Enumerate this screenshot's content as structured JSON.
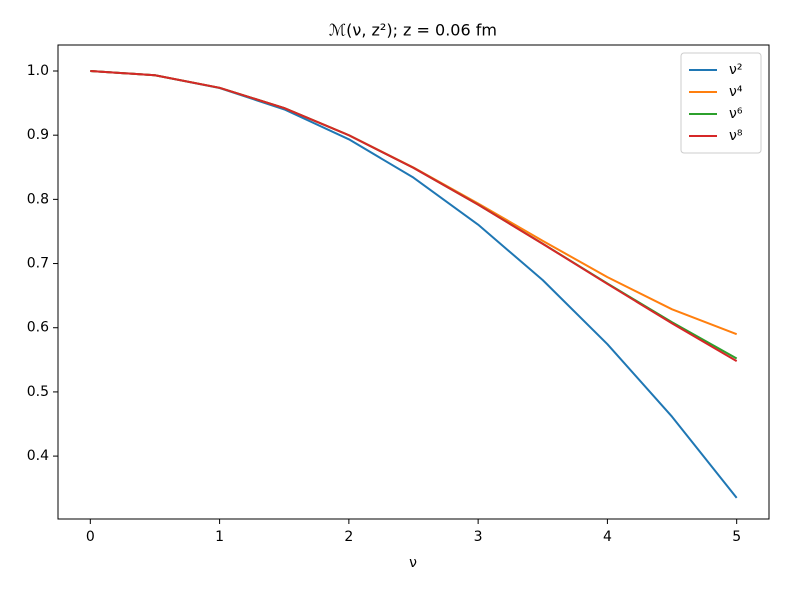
{
  "chart_data": {
    "type": "line",
    "title": "ℳ(ν, z²); z = 0.06 fm",
    "x_label": "ν",
    "x": [
      0,
      0.5,
      1,
      1.5,
      2,
      2.5,
      3,
      3.5,
      4,
      4.5,
      5
    ],
    "series": [
      {
        "name": "ν²",
        "color": "#1f77b4",
        "values": [
          1,
          0.9934,
          0.9734,
          0.9402,
          0.8936,
          0.8338,
          0.7606,
          0.6742,
          0.5744,
          0.4614,
          0.335
        ]
      },
      {
        "name": "ν⁴",
        "color": "#ff7f0e",
        "values": [
          1,
          0.9934,
          0.9738,
          0.9423,
          0.9001,
          0.8497,
          0.7936,
          0.7354,
          0.6788,
          0.6287,
          0.59
        ]
      },
      {
        "name": "ν⁶",
        "color": "#2ca02c",
        "values": [
          1,
          0.9934,
          0.9738,
          0.9423,
          0.8999,
          0.8491,
          0.7918,
          0.7309,
          0.6689,
          0.6085,
          0.552
        ]
      },
      {
        "name": "ν⁸",
        "color": "#d62728",
        "values": [
          1,
          0.9934,
          0.9738,
          0.9423,
          0.8999,
          0.8491,
          0.7917,
          0.7307,
          0.6682,
          0.6068,
          0.548
        ]
      }
    ],
    "xlim": [
      -0.25,
      5.25
    ],
    "xticks": [
      0,
      1,
      2,
      3,
      4,
      5
    ],
    "ylim": [
      0.302,
      1.0405
    ],
    "yticks": [
      {
        "value": 1,
        "label": "1.0"
      },
      0.9,
      0.8,
      0.7,
      0.6,
      0.5,
      0.4
    ],
    "grid": false,
    "legend": "upper-right"
  }
}
